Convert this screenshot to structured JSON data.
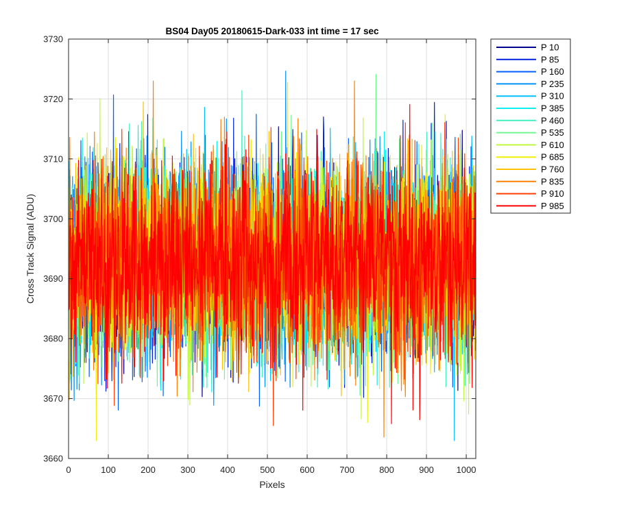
{
  "chart_data": {
    "type": "line",
    "title": "BS04 Day05 20180615-Dark-033 int time = 17 sec",
    "xlabel": "Pixels",
    "ylabel": "Cross Track Signal (ADU)",
    "xlim": [
      0,
      1024
    ],
    "ylim": [
      3660,
      3730
    ],
    "xticks": [
      0,
      100,
      200,
      300,
      400,
      500,
      600,
      700,
      800,
      900,
      1000
    ],
    "yticks": [
      3660,
      3670,
      3680,
      3690,
      3700,
      3710,
      3720,
      3730
    ],
    "grid": true,
    "legend_position": "outside-top-right",
    "noise_model": {
      "mean": 3693,
      "std": 8,
      "points_per_series": 1024
    },
    "series": [
      {
        "name": "P 10",
        "color": "#00008F"
      },
      {
        "name": "P 85",
        "color": "#0020DF"
      },
      {
        "name": "P 160",
        "color": "#0060FF"
      },
      {
        "name": "P 235",
        "color": "#0090FF"
      },
      {
        "name": "P 310",
        "color": "#00C0FF"
      },
      {
        "name": "P 385",
        "color": "#10EFEF"
      },
      {
        "name": "P 460",
        "color": "#40F0C0"
      },
      {
        "name": "P 535",
        "color": "#70F890"
      },
      {
        "name": "P 610",
        "color": "#C0F840"
      },
      {
        "name": "P 685",
        "color": "#F0F000"
      },
      {
        "name": "P 760",
        "color": "#FFC000"
      },
      {
        "name": "P 835",
        "color": "#FF8000"
      },
      {
        "name": "P 910",
        "color": "#FF4000"
      },
      {
        "name": "P 985",
        "color": "#FF0000"
      }
    ]
  }
}
